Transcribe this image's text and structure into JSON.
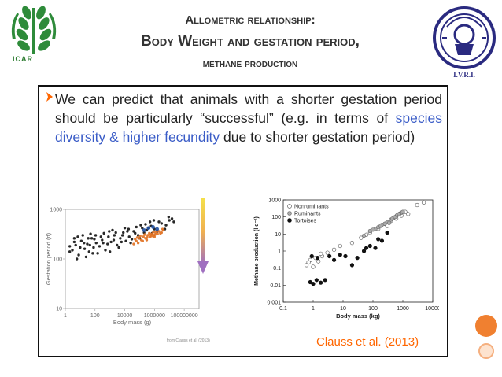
{
  "slide": {
    "title_line1": "Allometric relationship:",
    "title_line2": "Body Weight and gestation period,",
    "title_line3": "methane production",
    "logo_left_text": "ICAR",
    "logo_right_text": "I.V.R.I.",
    "bullet_icon": "arrow-bullet",
    "body_part1": "We can predict that  animals  with a shorter gestation period should be particularly “successful”  (e.g. in terms of ",
    "body_highlight1": "species diversity & higher  fecundity",
    "body_part2": "  due to shorter gestation period)",
    "citation": "Clauss et al. (2013)",
    "credit": "from Clauss et al. (2013)",
    "accent_color": "#ff6600",
    "highlight_color": "#3a5cc7"
  },
  "chart_data": [
    {
      "type": "scatter",
      "title": "",
      "xlabel": "Body mass (g)",
      "ylabel": "Gestation period (d)",
      "x_scale": "log",
      "y_scale": "log",
      "xlim": [
        1,
        1000000000
      ],
      "ylim": [
        10,
        1000
      ],
      "x_ticks": [
        "1",
        "100",
        "10000",
        "1000000",
        "100000000"
      ],
      "y_ticks": [
        "1000",
        "100",
        "10"
      ],
      "series": [
        {
          "color": "#111111",
          "points": [
            [
              3,
              150
            ],
            [
              5,
              190
            ],
            [
              8,
              120
            ],
            [
              12,
              230
            ],
            [
              20,
              160
            ],
            [
              30,
              200
            ],
            [
              40,
              140
            ],
            [
              60,
              260
            ],
            [
              80,
              170
            ],
            [
              120,
              210
            ],
            [
              200,
              180
            ],
            [
              300,
              240
            ],
            [
              500,
              150
            ],
            [
              800,
              280
            ],
            [
              1200,
              220
            ],
            [
              2000,
              300
            ],
            [
              3000,
              190
            ],
            [
              5000,
              260
            ],
            [
              8000,
              340
            ],
            [
              12000,
              230
            ],
            [
              20000,
              280
            ],
            [
              40000,
              360
            ],
            [
              80000,
              300
            ],
            [
              150000,
              420
            ],
            [
              300000,
              380
            ],
            [
              600000,
              460
            ],
            [
              1000000,
              400
            ],
            [
              3000000,
              520
            ],
            [
              6000000,
              480
            ],
            [
              4,
              260
            ],
            [
              6,
              100
            ],
            [
              15,
              300
            ],
            [
              25,
              110
            ],
            [
              50,
              320
            ],
            [
              90,
              250
            ],
            [
              150,
              130
            ],
            [
              400,
              330
            ],
            [
              700,
              200
            ],
            [
              1500,
              380
            ],
            [
              4000,
              170
            ],
            [
              10000,
              420
            ],
            [
              25000,
              210
            ],
            [
              60000,
              440
            ],
            [
              100000,
              260
            ],
            [
              250000,
              500
            ],
            [
              700000,
              330
            ],
            [
              2000000,
              560
            ],
            [
              4,
              220
            ],
            [
              2,
              180
            ],
            [
              10,
              170
            ],
            [
              35,
              260
            ],
            [
              70,
              130
            ],
            [
              250,
              280
            ],
            [
              1000,
              140
            ],
            [
              2500,
              340
            ],
            [
              6000,
              220
            ],
            [
              15000,
              360
            ],
            [
              30000,
              250
            ],
            [
              200000,
              340
            ],
            [
              500000,
              560
            ],
            [
              1500000,
              360
            ],
            [
              10000000,
              600
            ],
            [
              20000000,
              560
            ],
            [
              2,
              140
            ],
            [
              7,
              280
            ],
            [
              18,
              210
            ],
            [
              45,
              190
            ],
            [
              110,
              300
            ],
            [
              350,
              210
            ],
            [
              900,
              360
            ],
            [
              1800,
              240
            ],
            [
              7000,
              300
            ],
            [
              18000,
              400
            ],
            [
              50000,
              330
            ],
            [
              120000,
              480
            ],
            [
              400000,
              420
            ],
            [
              900000,
              600
            ],
            [
              5000000,
              400
            ],
            [
              9000000,
              700
            ],
            [
              15000000,
              650
            ]
          ]
        },
        {
          "color": "#e07020",
          "points": [
            [
              40000,
              200
            ],
            [
              60000,
              230
            ],
            [
              90000,
              260
            ],
            [
              130000,
              240
            ],
            [
              180000,
              280
            ],
            [
              250000,
              260
            ],
            [
              350000,
              300
            ],
            [
              500000,
              280
            ],
            [
              700000,
              320
            ],
            [
              900000,
              300
            ],
            [
              1200000,
              340
            ],
            [
              1600000,
              320
            ],
            [
              2000000,
              360
            ],
            [
              3000000,
              340
            ],
            [
              4000000,
              380
            ],
            [
              50000,
              250
            ],
            [
              80000,
              210
            ],
            [
              110000,
              290
            ],
            [
              160000,
              230
            ],
            [
              220000,
              310
            ],
            [
              320000,
              270
            ],
            [
              450000,
              330
            ],
            [
              650000,
              290
            ],
            [
              850000,
              350
            ],
            [
              1100000,
              310
            ],
            [
              1500000,
              370
            ],
            [
              2500000,
              330
            ],
            [
              3500000,
              400
            ],
            [
              70000,
              270
            ],
            [
              300000,
              240
            ],
            [
              600000,
              310
            ],
            [
              1000000,
              280
            ]
          ]
        },
        {
          "color": "#2050a0",
          "points": [
            [
              200000,
              380
            ],
            [
              400000,
              420
            ],
            [
              800000,
              440
            ],
            [
              1500000,
              400
            ]
          ]
        }
      ]
    },
    {
      "type": "scatter",
      "title": "",
      "xlabel": "Body mass (kg)",
      "ylabel": "Methane production (l d⁻¹)",
      "x_scale": "log",
      "y_scale": "log",
      "xlim": [
        0.1,
        10000
      ],
      "ylim": [
        0.001,
        1000
      ],
      "x_ticks": [
        "0.1",
        "1",
        "10",
        "100",
        "1000",
        "10000"
      ],
      "y_ticks": [
        "1000",
        "100",
        "10",
        "1",
        "0.1",
        "0.01",
        "0.001"
      ],
      "legend_position": "top-left",
      "series": [
        {
          "name": "Nonruminants",
          "marker": "open-circle",
          "points": [
            [
              0.6,
              0.15
            ],
            [
              0.8,
              0.3
            ],
            [
              1.0,
              0.12
            ],
            [
              1.2,
              0.4
            ],
            [
              1.5,
              0.25
            ],
            [
              2.0,
              0.5
            ],
            [
              3.0,
              0.8
            ],
            [
              5,
              1.2
            ],
            [
              8,
              2
            ],
            [
              20,
              3
            ],
            [
              40,
              6
            ],
            [
              80,
              12
            ],
            [
              150,
              20
            ],
            [
              250,
              40
            ],
            [
              400,
              60
            ],
            [
              600,
              80
            ],
            [
              900,
              120
            ],
            [
              1500,
              150
            ],
            [
              3000,
              500
            ],
            [
              5000,
              700
            ],
            [
              0.7,
              0.22
            ],
            [
              1.8,
              0.7
            ],
            [
              60,
              9
            ],
            [
              300,
              30
            ],
            [
              1200,
              200
            ]
          ]
        },
        {
          "name": "Ruminants",
          "marker": "grey-circle",
          "points": [
            [
              50,
              8
            ],
            [
              80,
              15
            ],
            [
              120,
              20
            ],
            [
              200,
              35
            ],
            [
              300,
              50
            ],
            [
              400,
              70
            ],
            [
              500,
              90
            ],
            [
              600,
              110
            ],
            [
              700,
              140
            ],
            [
              800,
              160
            ],
            [
              900,
              180
            ],
            [
              1000,
              200
            ],
            [
              250,
              40
            ],
            [
              350,
              45
            ],
            [
              450,
              80
            ],
            [
              550,
              100
            ],
            [
              650,
              130
            ],
            [
              750,
              150
            ],
            [
              100,
              18
            ],
            [
              150,
              25
            ],
            [
              180,
              30
            ]
          ]
        },
        {
          "name": "Tortoises",
          "marker": "filled-circle",
          "points": [
            [
              0.8,
              0.015
            ],
            [
              1.0,
              0.012
            ],
            [
              1.3,
              0.02
            ],
            [
              1.8,
              0.014
            ],
            [
              2.5,
              0.02
            ],
            [
              3.5,
              0.5
            ],
            [
              5,
              0.3
            ],
            [
              8,
              0.6
            ],
            [
              12,
              0.5
            ],
            [
              20,
              0.15
            ],
            [
              30,
              0.4
            ],
            [
              50,
              1.0
            ],
            [
              80,
              2.0
            ],
            [
              120,
              1.5
            ],
            [
              200,
              4
            ],
            [
              300,
              12
            ],
            [
              0.9,
              0.5
            ],
            [
              1.4,
              0.4
            ],
            [
              60,
              1.5
            ],
            [
              150,
              5
            ]
          ]
        }
      ]
    }
  ]
}
